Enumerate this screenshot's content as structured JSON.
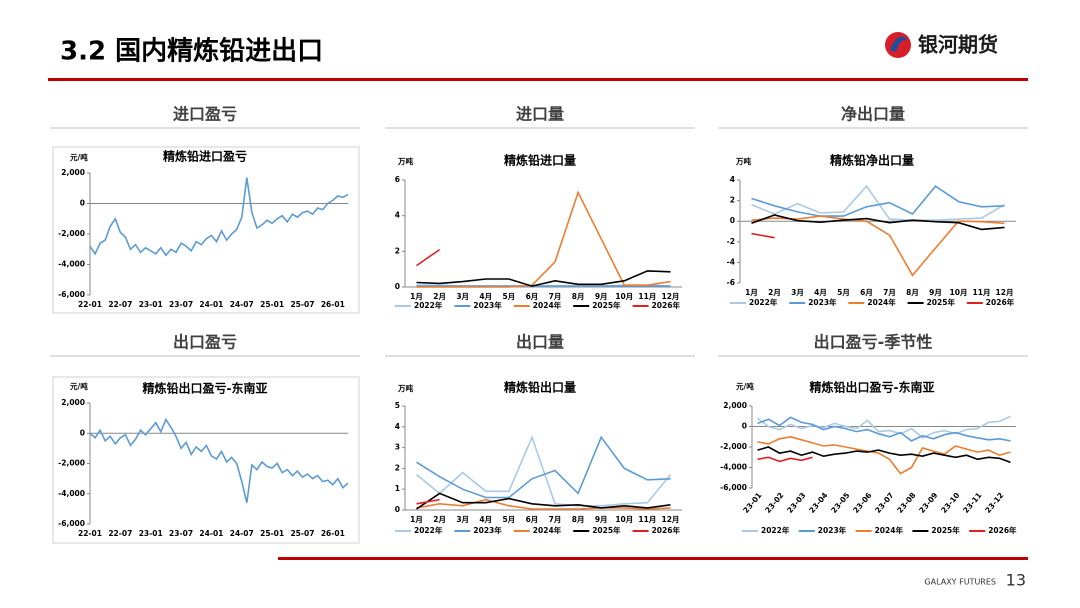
{
  "header": {
    "title": "3.2 国内精炼铅进出口",
    "brand": "银河期货"
  },
  "footer": {
    "brand": "GALAXY FUTURES",
    "page": "13"
  },
  "sections": [
    "进口盈亏",
    "进口量",
    "净出口量",
    "出口盈亏",
    "出口量",
    "出口盈亏-季节性"
  ],
  "chart_data": [
    {
      "type": "line",
      "title": "精炼铅进口盈亏",
      "ylabel": "元/吨",
      "color": "#5b9bd5",
      "categories": [
        "22-01",
        null,
        null,
        null,
        null,
        null,
        "22-07",
        null,
        null,
        null,
        null,
        null,
        "23-01",
        null,
        null,
        null,
        null,
        null,
        "23-07",
        null,
        null,
        null,
        null,
        null,
        "24-01",
        null,
        null,
        null,
        null,
        null,
        "24-07",
        null,
        null,
        null,
        null,
        null,
        "25-01",
        null,
        null,
        null,
        null,
        null,
        "25-07",
        null,
        null,
        null,
        null,
        null,
        "26-01",
        null,
        null,
        null
      ],
      "values": [
        -2800,
        -3300,
        -2600,
        -2400,
        -1500,
        -1000,
        -1900,
        -2200,
        -3000,
        -2700,
        -3200,
        -2900,
        -3100,
        -3300,
        -2900,
        -3400,
        -3000,
        -3200,
        -2600,
        -2800,
        -3100,
        -2500,
        -2700,
        -2300,
        -2100,
        -2500,
        -1800,
        -2400,
        -2000,
        -1700,
        -900,
        1700,
        -600,
        -1600,
        -1400,
        -1100,
        -1300,
        -1000,
        -800,
        -1200,
        -700,
        -900,
        -600,
        -500,
        -700,
        -300,
        -400,
        0,
        200,
        500,
        400,
        600
      ],
      "ylim": [
        -6000,
        2000
      ],
      "yticks": [
        {
          "value": -6000,
          "label": "-6,000"
        },
        {
          "value": -4000,
          "label": "-4,000"
        },
        {
          "value": -2000,
          "label": "-2,000"
        },
        0,
        {
          "value": 2000,
          "label": "2,000"
        }
      ]
    },
    {
      "type": "line",
      "title": "精炼铅进口量",
      "ylabel": "万吨",
      "legend": "bottom",
      "categories": [
        "1月",
        "2月",
        "3月",
        "4月",
        "5月",
        "6月",
        "7月",
        "8月",
        "9月",
        "10月",
        "11月",
        "12月"
      ],
      "series": [
        {
          "name": "2022年",
          "color": "#a9c9e8",
          "values": [
            0.1,
            0.1,
            0.05,
            0.05,
            0.05,
            0.05,
            0.05,
            0.05,
            0.05,
            0.1,
            0.1,
            0.05
          ]
        },
        {
          "name": "2023年",
          "color": "#5b9bd5",
          "values": [
            0.05,
            0.05,
            0.05,
            0.05,
            0.05,
            0.05,
            0.05,
            0.05,
            0.05,
            0.05,
            0.05,
            0.05
          ]
        },
        {
          "name": "2024年",
          "color": "#ed7d31",
          "values": [
            0,
            0,
            0,
            0,
            0,
            0.1,
            1.4,
            5.3,
            2.7,
            0.1,
            0.1,
            0.3
          ]
        },
        {
          "name": "2025年",
          "color": "#000000",
          "values": [
            0.25,
            0.2,
            0.3,
            0.45,
            0.45,
            0.05,
            0.35,
            0.15,
            0.15,
            0.35,
            0.9,
            0.85
          ]
        },
        {
          "name": "2026年",
          "color": "#e02020",
          "values": [
            1.2,
            2.1,
            null,
            null,
            null,
            null,
            null,
            null,
            null,
            null,
            null,
            null
          ]
        }
      ],
      "ylim": [
        0,
        6
      ],
      "yticks": [
        0,
        2,
        4,
        6
      ]
    },
    {
      "type": "line",
      "title": "精炼铅净出口量",
      "ylabel": "万吨",
      "legend": "bottom",
      "categories": [
        "1月",
        "2月",
        "3月",
        "4月",
        "5月",
        "6月",
        "7月",
        "8月",
        "9月",
        "10月",
        "11月",
        "12月"
      ],
      "series": [
        {
          "name": "2022年",
          "color": "#a9c9e8",
          "values": [
            1.6,
            0.7,
            1.7,
            0.8,
            0.9,
            3.4,
            0.2,
            0.1,
            0.1,
            0.2,
            0.3,
            1.6
          ]
        },
        {
          "name": "2023年",
          "color": "#5b9bd5",
          "values": [
            2.2,
            1.5,
            0.9,
            0.5,
            0.5,
            1.4,
            1.8,
            0.7,
            3.4,
            1.9,
            1.4,
            1.5
          ]
        },
        {
          "name": "2024年",
          "color": "#ed7d31",
          "values": [
            0.1,
            0.3,
            0.2,
            0.5,
            0.2,
            0,
            -1.35,
            -5.25,
            -2.6,
            0,
            -0.05,
            -0.2
          ]
        },
        {
          "name": "2025年",
          "color": "#000000",
          "values": [
            -0.2,
            0.6,
            0.05,
            -0.1,
            0.1,
            0.25,
            -0.15,
            0.1,
            -0.05,
            -0.15,
            -0.8,
            -0.6
          ]
        },
        {
          "name": "2026年",
          "color": "#e02020",
          "values": [
            -1.2,
            -1.6,
            null,
            null,
            null,
            null,
            null,
            null,
            null,
            null,
            null,
            null
          ]
        }
      ],
      "ylim": [
        -6,
        4
      ],
      "yticks": [
        -6,
        -4,
        -2,
        0,
        2,
        4
      ]
    },
    {
      "type": "line",
      "title": "精炼铅出口盈亏-东南亚",
      "ylabel": "元/吨",
      "color": "#5b9bd5",
      "categories": [
        "22-01",
        null,
        null,
        null,
        null,
        null,
        "22-07",
        null,
        null,
        null,
        null,
        null,
        "23-01",
        null,
        null,
        null,
        null,
        null,
        "23-07",
        null,
        null,
        null,
        null,
        null,
        "24-01",
        null,
        null,
        null,
        null,
        null,
        "24-07",
        null,
        null,
        null,
        null,
        null,
        "25-01",
        null,
        null,
        null,
        null,
        null,
        "25-07",
        null,
        null,
        null,
        null,
        null,
        "26-01",
        null,
        null,
        null
      ],
      "values": [
        0,
        -300,
        200,
        -500,
        -200,
        -700,
        -300,
        -100,
        -800,
        -400,
        200,
        -100,
        300,
        700,
        100,
        900,
        400,
        -200,
        -1000,
        -600,
        -1400,
        -900,
        -1200,
        -800,
        -1500,
        -1700,
        -1200,
        -1900,
        -1600,
        -2000,
        -3200,
        -4600,
        -2100,
        -2400,
        -1900,
        -2200,
        -2300,
        -2000,
        -2600,
        -2400,
        -2800,
        -2500,
        -2900,
        -2700,
        -3000,
        -2800,
        -3200,
        -3100,
        -3400,
        -3000,
        -3600,
        -3300
      ],
      "ylim": [
        -6000,
        2000
      ],
      "yticks": [
        {
          "value": -6000,
          "label": "-6,000"
        },
        {
          "value": -4000,
          "label": "-4,000"
        },
        {
          "value": -2000,
          "label": "-2,000"
        },
        0,
        {
          "value": 2000,
          "label": "2,000"
        }
      ]
    },
    {
      "type": "line",
      "title": "精炼铅出口量",
      "ylabel": "万吨",
      "legend": "bottom",
      "categories": [
        "1月",
        "2月",
        "3月",
        "4月",
        "5月",
        "6月",
        "7月",
        "8月",
        "9月",
        "10月",
        "11月",
        "12月"
      ],
      "series": [
        {
          "name": "2022年",
          "color": "#a9c9e8",
          "values": [
            1.7,
            0.8,
            1.8,
            0.9,
            0.9,
            3.5,
            0.3,
            0.2,
            0.2,
            0.3,
            0.35,
            1.7
          ]
        },
        {
          "name": "2023年",
          "color": "#5b9bd5",
          "values": [
            2.3,
            1.6,
            1.0,
            0.6,
            0.6,
            1.5,
            1.9,
            0.8,
            3.5,
            2.0,
            1.45,
            1.5
          ]
        },
        {
          "name": "2024年",
          "color": "#ed7d31",
          "values": [
            0.1,
            0.3,
            0.2,
            0.5,
            0.2,
            0.05,
            0.05,
            0.05,
            0.1,
            0.1,
            0.05,
            0.1
          ]
        },
        {
          "name": "2025年",
          "color": "#000000",
          "values": [
            0.05,
            0.8,
            0.35,
            0.35,
            0.55,
            0.3,
            0.2,
            0.25,
            0.1,
            0.2,
            0.1,
            0.25
          ]
        },
        {
          "name": "2026年",
          "color": "#e02020",
          "values": [
            0.3,
            0.5,
            null,
            null,
            null,
            null,
            null,
            null,
            null,
            null,
            null,
            null
          ]
        }
      ],
      "ylim": [
        0,
        5
      ],
      "yticks": [
        0,
        1,
        2,
        3,
        4,
        5
      ]
    },
    {
      "type": "line",
      "title": "精炼铅出口盈亏-东南亚",
      "ylabel": "元/吨",
      "legend": "bottom",
      "rotate_labels": true,
      "categories": [
        "23-01",
        null,
        "23-02",
        null,
        "23-03",
        null,
        "23-04",
        null,
        "23-05",
        null,
        "23-06",
        null,
        "23-07",
        null,
        "23-08",
        null,
        "23-09",
        null,
        "23-10",
        null,
        "23-11",
        null,
        "23-12",
        null
      ],
      "series": [
        {
          "name": "2022年",
          "color": "#a9c9e8",
          "values": [
            800,
            0,
            -300,
            200,
            -200,
            100,
            -100,
            300,
            0,
            -200,
            600,
            -500,
            -400,
            -700,
            -200,
            -1100,
            -600,
            -400,
            -700,
            -300,
            -200,
            400,
            500,
            1000
          ]
        },
        {
          "name": "2023年",
          "color": "#5b9bd5",
          "values": [
            300,
            700,
            100,
            900,
            400,
            200,
            -300,
            0,
            -200,
            -500,
            -300,
            -700,
            -1000,
            -600,
            -1400,
            -900,
            -1200,
            -800,
            -600,
            -900,
            -1100,
            -1300,
            -1200,
            -1400
          ]
        },
        {
          "name": "2024年",
          "color": "#ed7d31",
          "values": [
            -1500,
            -1700,
            -1200,
            -1000,
            -1300,
            -1600,
            -1900,
            -1800,
            -2000,
            -2200,
            -2400,
            -2600,
            -3200,
            -4600,
            -4000,
            -2100,
            -2400,
            -2700,
            -1900,
            -2200,
            -2500,
            -2300,
            -2800,
            -2500
          ]
        },
        {
          "name": "2025年",
          "color": "#000000",
          "values": [
            -2300,
            -2000,
            -2600,
            -2400,
            -2800,
            -2500,
            -2900,
            -2700,
            -2600,
            -2400,
            -2500,
            -2300,
            -2600,
            -2800,
            -2700,
            -2900,
            -2600,
            -2800,
            -3000,
            -2800,
            -3200,
            -3000,
            -3100,
            -3500
          ]
        },
        {
          "name": "2026年",
          "color": "#e02020",
          "values": [
            -3200,
            -3000,
            -3400,
            -3100,
            -3300,
            -3000,
            null,
            null,
            null,
            null,
            null,
            null,
            null,
            null,
            null,
            null,
            null,
            null,
            null,
            null,
            null,
            null,
            null,
            null
          ]
        }
      ],
      "ylim": [
        -6000,
        2000
      ],
      "yticks": [
        {
          "value": -6000,
          "label": "-6,000"
        },
        {
          "value": -4000,
          "label": "-4,000"
        },
        {
          "value": -2000,
          "label": "-2,000"
        },
        0,
        {
          "value": 2000,
          "label": "2,000"
        }
      ]
    }
  ]
}
